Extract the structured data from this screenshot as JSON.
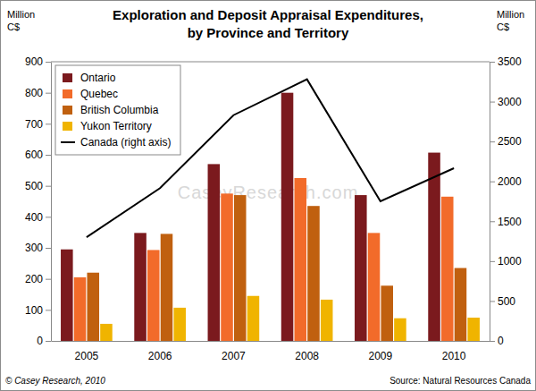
{
  "chart_data": {
    "type": "bar",
    "title": "Exploration and Deposit Appraisal Expenditures,\nby Province and Territory",
    "y_label": "Million\nC$",
    "y2_label": "Million\nC$",
    "categories": [
      "2005",
      "2006",
      "2007",
      "2008",
      "2009",
      "2010"
    ],
    "series": [
      {
        "name": "Ontario",
        "color": "#7b1a1e",
        "values": [
          295,
          348,
          570,
          800,
          470,
          607
        ]
      },
      {
        "name": "Quebec",
        "color": "#f26b2a",
        "values": [
          205,
          293,
          475,
          525,
          348,
          465
        ]
      },
      {
        "name": "British Columbia",
        "color": "#c0600f",
        "values": [
          220,
          345,
          470,
          435,
          178,
          235
        ]
      },
      {
        "name": "Yukon Territory",
        "color": "#f0b400",
        "values": [
          55,
          107,
          145,
          133,
          73,
          75
        ]
      },
      {
        "name": "Canada (right axis)",
        "color": "#000000",
        "type": "line",
        "axis": "y2",
        "values": [
          1300,
          1915,
          2830,
          3280,
          1750,
          2165
        ]
      }
    ],
    "ylim": [
      0,
      900
    ],
    "yticks": [
      0,
      100,
      200,
      300,
      400,
      500,
      600,
      700,
      800,
      900
    ],
    "y2lim": [
      0,
      3500
    ],
    "y2ticks": [
      0,
      500,
      1000,
      1500,
      2000,
      2500,
      3000,
      3500
    ],
    "grid": false,
    "legend": "top-left",
    "annotations": [
      "© Casey Research, 2010",
      "Source: Natural Resources Canada",
      "CaseyResearch.com"
    ]
  }
}
